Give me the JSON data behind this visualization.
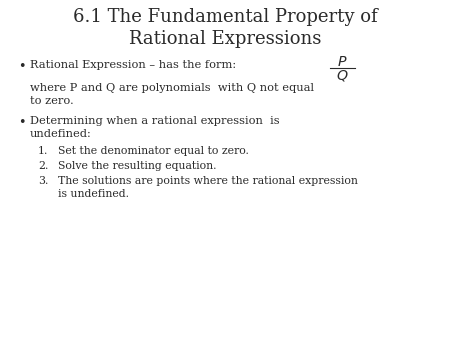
{
  "title_line1": "6.1 The Fundamental Property of",
  "title_line2": "Rational Expressions",
  "background_color": "#ffffff",
  "text_color": "#2a2a2a",
  "title_fontsize": 13,
  "body_fontsize": 8.2,
  "numbered_fontsize": 7.8,
  "bullet1_text": "Rational Expression – has the form:",
  "where_text": "where P and Q are polynomials  with Q not equal\nto zero.",
  "bullet2_line1": "Determining when a rational expression  is",
  "bullet2_line2": "undefined:",
  "item1": "Set the denominator equal to zero.",
  "item2": "Solve the resulting equation.",
  "item3_line1": "The solutions are points where the rational expression",
  "item3_line2": "is undefined."
}
